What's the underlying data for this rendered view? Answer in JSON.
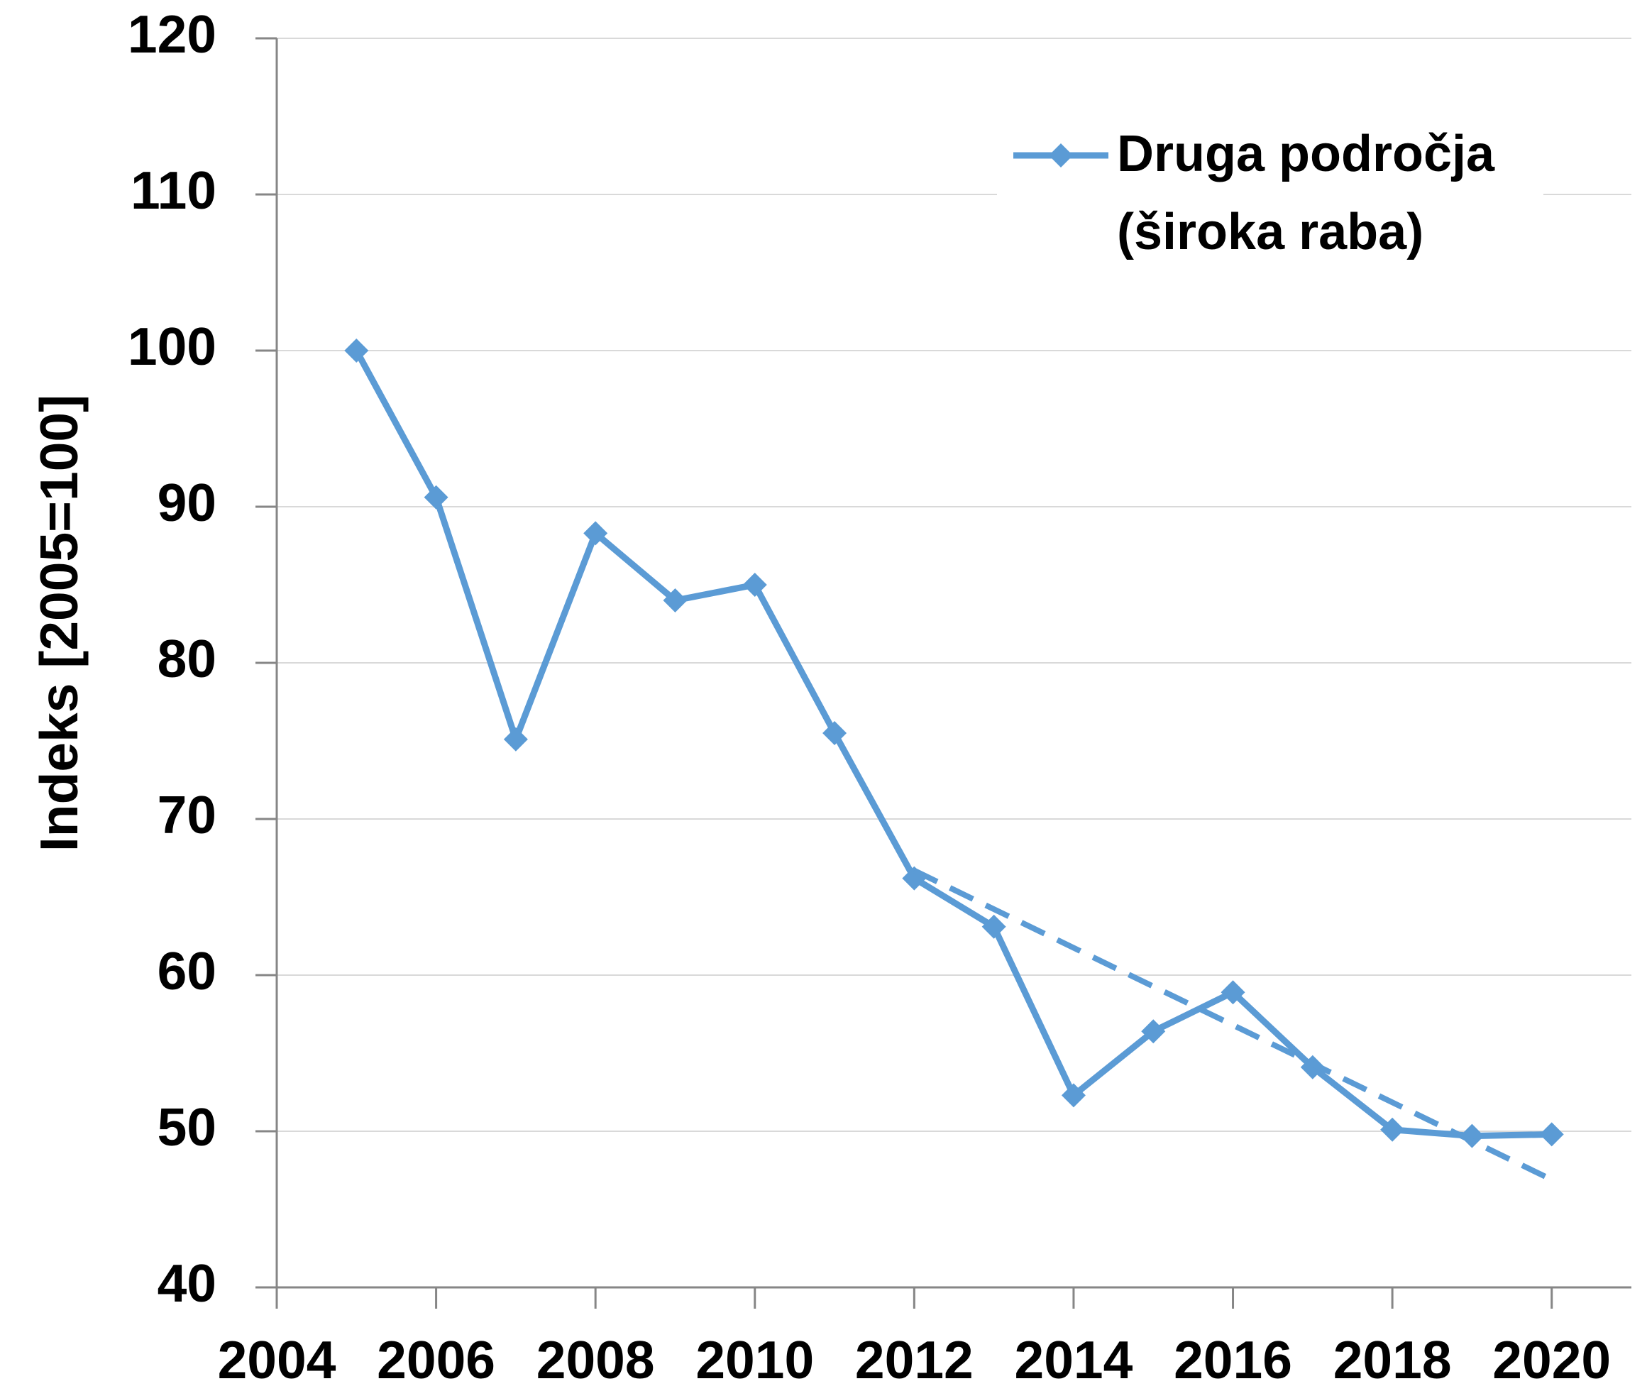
{
  "chart_data": {
    "type": "line",
    "y_label": "Indeks [2005=100]",
    "x": [
      2005,
      2006,
      2007,
      2008,
      2009,
      2010,
      2011,
      2012,
      2013,
      2014,
      2015,
      2016,
      2017,
      2018,
      2019,
      2020
    ],
    "series": [
      {
        "name": "Druga področja (široka raba)",
        "color": "#5b9bd5",
        "values": [
          100,
          90.6,
          75.1,
          88.3,
          84.0,
          85.0,
          75.5,
          66.2,
          63.1,
          52.3,
          56.4,
          58.9,
          54.1,
          50.1,
          49.7,
          49.8
        ]
      }
    ],
    "trendline": {
      "x": [
        2012,
        2020
      ],
      "values": [
        66.7,
        46.9
      ],
      "color": "#5b9bd5",
      "dashed": true
    },
    "xlim": [
      2004,
      2021
    ],
    "xticks": [
      2004,
      2006,
      2008,
      2010,
      2012,
      2014,
      2016,
      2018,
      2020
    ],
    "ylim": [
      40,
      120
    ],
    "yticks": [
      40,
      50,
      60,
      70,
      80,
      90,
      100,
      110,
      120
    ],
    "grid": true,
    "legend": "upper right"
  }
}
